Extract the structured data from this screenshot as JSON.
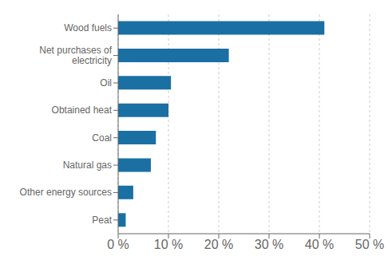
{
  "chart_data": {
    "type": "bar",
    "orientation": "horizontal",
    "categories": [
      "Peat",
      "Other energy sources",
      "Natural gas",
      "Coal",
      "Obtained heat",
      "Oil",
      "Net purchases of\nelectricity",
      "Wood fuels"
    ],
    "values": [
      1.5,
      3.0,
      6.5,
      7.5,
      10.0,
      10.5,
      22.0,
      41.0
    ],
    "color": "#1a6fa3",
    "xlim": [
      0,
      50
    ],
    "xticks": [
      {
        "value": 0,
        "label": "0 %"
      },
      {
        "value": 10,
        "label": "10 %"
      },
      {
        "value": 20,
        "label": "20 %"
      },
      {
        "value": 30,
        "label": "30 %"
      },
      {
        "value": 40,
        "label": "40 %"
      },
      {
        "value": 50,
        "label": "50 %"
      }
    ],
    "grid": true
  }
}
